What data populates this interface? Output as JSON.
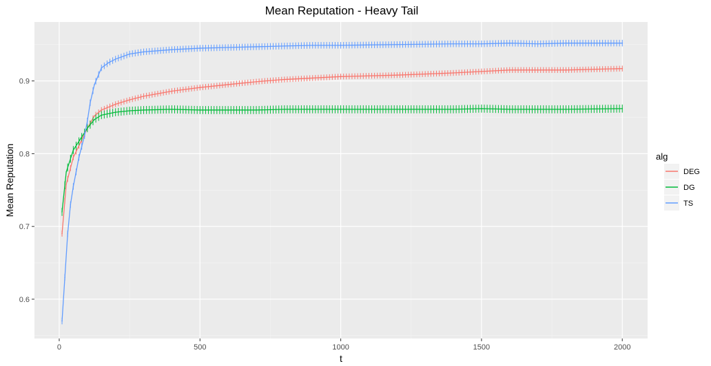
{
  "chart_data": {
    "type": "line",
    "title": "Mean Reputation - Heavy Tail",
    "xlabel": "t",
    "ylabel": "Mean Reputation",
    "xlim": [
      -88,
      2090
    ],
    "ylim": [
      0.546,
      0.981
    ],
    "x_ticks": [
      0,
      500,
      1000,
      1500,
      2000
    ],
    "x_tick_labels": [
      "0",
      "500",
      "1000",
      "1500",
      "2000"
    ],
    "y_ticks": [
      0.6,
      0.7,
      0.8,
      0.9
    ],
    "y_tick_labels": [
      "0.6",
      "0.7",
      "0.8",
      "0.9"
    ],
    "grid": true,
    "legend_title": "alg",
    "legend_position": "right",
    "error_bars": true,
    "series": [
      {
        "name": "DEG",
        "color": "#F8766D",
        "x": [
          10,
          25,
          50,
          75,
          100,
          125,
          150,
          200,
          250,
          300,
          400,
          500,
          600,
          700,
          800,
          900,
          1000,
          1200,
          1400,
          1500,
          1600,
          1800,
          2000
        ],
        "y": [
          0.69,
          0.758,
          0.795,
          0.815,
          0.835,
          0.852,
          0.86,
          0.868,
          0.874,
          0.879,
          0.886,
          0.891,
          0.895,
          0.899,
          0.902,
          0.904,
          0.906,
          0.908,
          0.911,
          0.913,
          0.915,
          0.915,
          0.917
        ],
        "err": 0.004
      },
      {
        "name": "DG",
        "color": "#00BA38",
        "x": [
          10,
          25,
          50,
          75,
          100,
          125,
          150,
          200,
          250,
          300,
          400,
          500,
          600,
          700,
          800,
          900,
          1000,
          1200,
          1400,
          1500,
          1600,
          1800,
          2000
        ],
        "y": [
          0.72,
          0.775,
          0.805,
          0.82,
          0.835,
          0.847,
          0.853,
          0.857,
          0.859,
          0.86,
          0.861,
          0.86,
          0.86,
          0.86,
          0.861,
          0.861,
          0.861,
          0.861,
          0.861,
          0.862,
          0.861,
          0.861,
          0.862
        ],
        "err": 0.0055
      },
      {
        "name": "TS",
        "color": "#619CFF",
        "x": [
          10,
          20,
          30,
          40,
          50,
          60,
          70,
          80,
          90,
          100,
          110,
          125,
          150,
          175,
          200,
          250,
          300,
          400,
          500,
          600,
          700,
          800,
          900,
          1000,
          1200,
          1400,
          1500,
          1600,
          1700,
          1800,
          2000
        ],
        "y": [
          0.57,
          0.63,
          0.69,
          0.73,
          0.755,
          0.775,
          0.795,
          0.81,
          0.825,
          0.845,
          0.87,
          0.895,
          0.918,
          0.925,
          0.93,
          0.937,
          0.94,
          0.943,
          0.945,
          0.946,
          0.947,
          0.948,
          0.949,
          0.949,
          0.95,
          0.951,
          0.951,
          0.952,
          0.951,
          0.952,
          0.952
        ],
        "err": 0.0045
      }
    ]
  }
}
